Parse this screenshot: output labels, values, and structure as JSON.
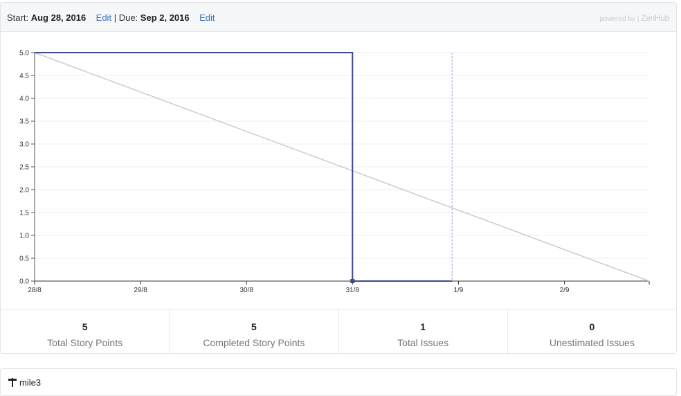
{
  "header": {
    "start_label": "Start:",
    "start_date": "Aug 28, 2016",
    "edit_label": "Edit",
    "separator": "|",
    "due_label": "Due:",
    "due_date": "Sep 2, 2016",
    "powered_by": "powered by |",
    "brand": "ZenHub"
  },
  "chart_data": {
    "type": "line",
    "x_tick_labels": [
      "28/8",
      "29/8",
      "30/8",
      "31/8",
      "1/9",
      "2/9"
    ],
    "y_tick_labels": [
      "5.0",
      "4.5",
      "4.0",
      "3.5",
      "3.0",
      "2.5",
      "2.0",
      "1.5",
      "1.0",
      "0.5",
      "0.0"
    ],
    "ylim": [
      0,
      5
    ],
    "xlim_days": [
      0,
      5.8
    ],
    "grid": true,
    "series": [
      {
        "kind": "ideal",
        "color": "#cccccc",
        "points": [
          [
            0,
            5
          ],
          [
            5.8,
            0
          ]
        ]
      },
      {
        "kind": "actual",
        "color": "#3e4a8a",
        "points": [
          [
            0,
            5
          ],
          [
            3,
            5
          ],
          [
            3,
            0
          ],
          [
            3.94,
            0
          ]
        ]
      }
    ],
    "today_day": 3.94,
    "today_color": "#9a9ee0"
  },
  "stats": [
    {
      "value": "5",
      "label": "Total Story Points"
    },
    {
      "value": "5",
      "label": "Completed Story Points"
    },
    {
      "value": "1",
      "label": "Total Issues"
    },
    {
      "value": "0",
      "label": "Unestimated Issues"
    }
  ],
  "milestone": {
    "name": "mile3",
    "icon": "milestone-icon"
  }
}
